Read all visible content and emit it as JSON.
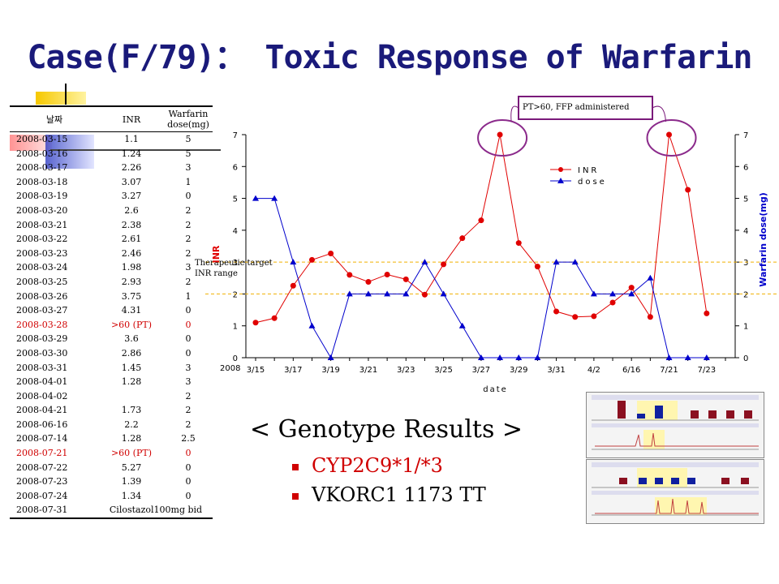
{
  "slide": {
    "title": "Case(F/79)： Toxic Response of Warfarin",
    "genotype_title": "< Genotype Results >",
    "genotypes": [
      "CYP2C9*1/*3",
      "VKORC1 1173 TT"
    ]
  },
  "table": {
    "headers": [
      "날짜",
      "INR",
      "Warfarin dose(mg)"
    ],
    "rows": [
      {
        "date": "2008-03-15",
        "inr": "1.1",
        "dose": "5",
        "highlight": false
      },
      {
        "date": "2008-03-16",
        "inr": "1.24",
        "dose": "5",
        "highlight": false
      },
      {
        "date": "2008-03-17",
        "inr": "2.26",
        "dose": "3",
        "highlight": false
      },
      {
        "date": "2008-03-18",
        "inr": "3.07",
        "dose": "1",
        "highlight": false
      },
      {
        "date": "2008-03-19",
        "inr": "3.27",
        "dose": "0",
        "highlight": false
      },
      {
        "date": "2008-03-20",
        "inr": "2.6",
        "dose": "2",
        "highlight": false
      },
      {
        "date": "2008-03-21",
        "inr": "2.38",
        "dose": "2",
        "highlight": false
      },
      {
        "date": "2008-03-22",
        "inr": "2.61",
        "dose": "2",
        "highlight": false
      },
      {
        "date": "2008-03-23",
        "inr": "2.46",
        "dose": "2",
        "highlight": false
      },
      {
        "date": "2008-03-24",
        "inr": "1.98",
        "dose": "3",
        "highlight": false
      },
      {
        "date": "2008-03-25",
        "inr": "2.93",
        "dose": "2",
        "highlight": false
      },
      {
        "date": "2008-03-26",
        "inr": "3.75",
        "dose": "1",
        "highlight": false
      },
      {
        "date": "2008-03-27",
        "inr": "4.31",
        "dose": "0",
        "highlight": false
      },
      {
        "date": "2008-03-28",
        "inr": ">60 (PT)",
        "dose": "0",
        "highlight": true
      },
      {
        "date": "2008-03-29",
        "inr": "3.6",
        "dose": "0",
        "highlight": false
      },
      {
        "date": "2008-03-30",
        "inr": "2.86",
        "dose": "0",
        "highlight": false
      },
      {
        "date": "2008-03-31",
        "inr": "1.45",
        "dose": "3",
        "highlight": false
      },
      {
        "date": "2008-04-01",
        "inr": "1.28",
        "dose": "3",
        "highlight": false
      },
      {
        "date": "2008-04-02",
        "inr": "",
        "dose": "2",
        "highlight": false
      },
      {
        "date": "2008-04-21",
        "inr": "1.73",
        "dose": "2",
        "highlight": false
      },
      {
        "date": "2008-06-16",
        "inr": "2.2",
        "dose": "2",
        "highlight": false
      },
      {
        "date": "2008-07-14",
        "inr": "1.28",
        "dose": "2.5",
        "highlight": false
      },
      {
        "date": "2008-07-21",
        "inr": ">60 (PT)",
        "dose": "0",
        "highlight": true
      },
      {
        "date": "2008-07-22",
        "inr": "5.27",
        "dose": "0",
        "highlight": false
      },
      {
        "date": "2008-07-23",
        "inr": "1.39",
        "dose": "0",
        "highlight": false
      },
      {
        "date": "2008-07-24",
        "inr": "1.34",
        "dose": "0",
        "highlight": false
      },
      {
        "date": "2008-07-31",
        "inr": "Cilostazol100mg bid",
        "dose": "",
        "highlight": false,
        "span": true
      }
    ]
  },
  "chart_data": {
    "type": "line",
    "xlabel": "date",
    "ylabel": "INR",
    "y2label": "Warfarin dose(mg)",
    "year_label": "2008",
    "ylim": [
      0,
      7
    ],
    "y2lim": [
      0,
      7
    ],
    "yticks": [
      "0",
      "1",
      "2",
      "3",
      "4",
      "5",
      "6",
      "7"
    ],
    "x_tick_labels": [
      "3/15",
      "3/17",
      "3/19",
      "3/21",
      "3/23",
      "3/25",
      "3/27",
      "3/29",
      "3/31",
      "4/2",
      "6/16",
      "7/21",
      "7/23"
    ],
    "x": [
      "3/15",
      "3/16",
      "3/17",
      "3/18",
      "3/19",
      "3/20",
      "3/21",
      "3/22",
      "3/23",
      "3/24",
      "3/25",
      "3/26",
      "3/27",
      "3/28",
      "3/29",
      "3/30",
      "3/31",
      "4/1",
      "4/2",
      "4/21",
      "6/16",
      "7/14",
      "7/21",
      "7/22",
      "7/23",
      "7/24"
    ],
    "series": [
      {
        "name": "INR",
        "color": "#e00000",
        "marker": "circle",
        "values": [
          1.1,
          1.24,
          2.26,
          3.07,
          3.27,
          2.6,
          2.38,
          2.61,
          2.46,
          1.98,
          2.93,
          3.75,
          4.31,
          7,
          3.6,
          2.86,
          1.45,
          1.28,
          1.3,
          1.73,
          2.2,
          1.28,
          7,
          5.27,
          1.39,
          null
        ]
      },
      {
        "name": "dose",
        "color": "#0000cc",
        "marker": "triangle",
        "values": [
          5,
          5,
          3,
          1,
          0,
          2,
          2,
          2,
          2,
          3,
          2,
          1,
          0,
          0,
          0,
          0,
          3,
          3,
          2,
          2,
          2,
          2.5,
          0,
          0,
          0,
          null
        ]
      }
    ],
    "reference_lines": [
      {
        "y": 3,
        "color": "#f0b000"
      },
      {
        "y": 2,
        "color": "#f0b000"
      }
    ],
    "reference_label": "Therapeutic target INR range",
    "callout": "PT>60, FFP administered",
    "legend": "upper-right-inside",
    "grid": false
  }
}
